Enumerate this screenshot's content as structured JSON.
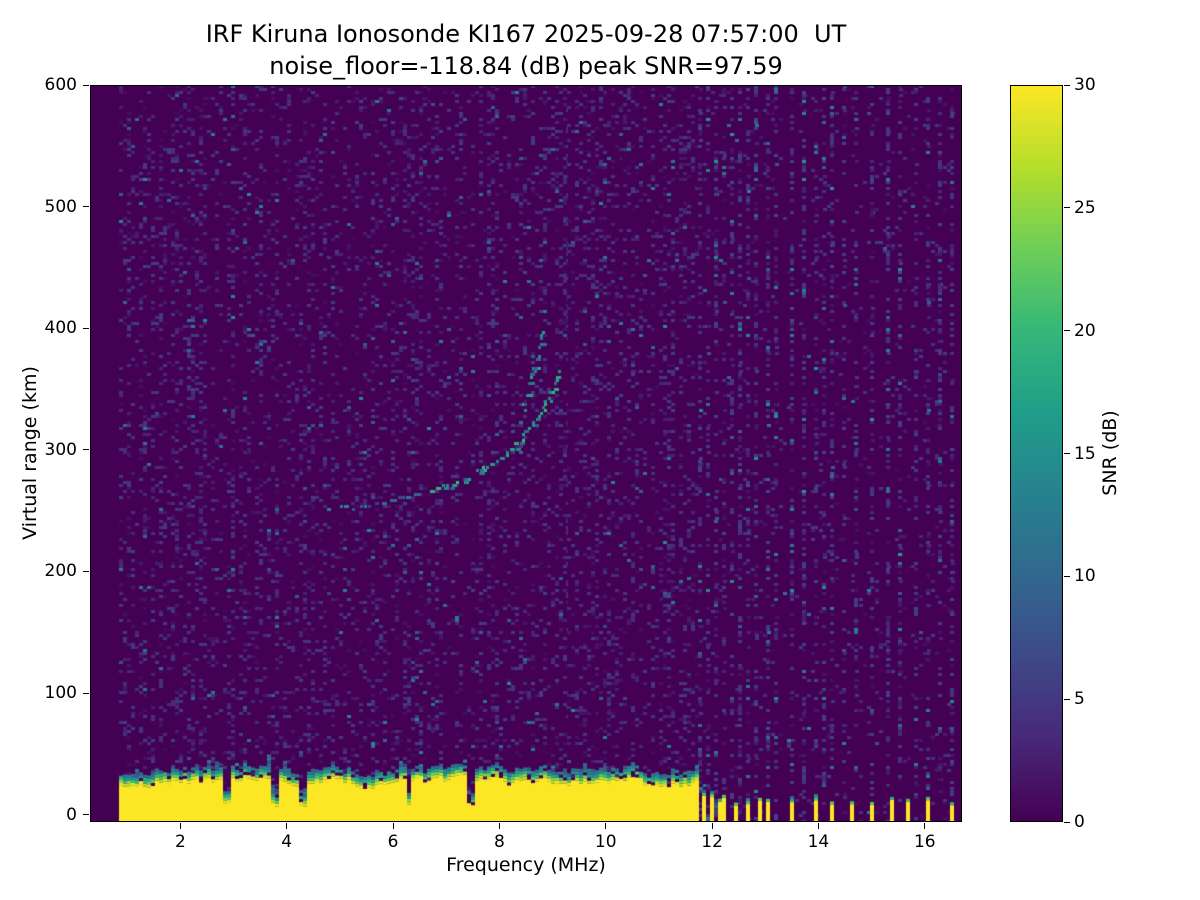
{
  "chart_data": {
    "type": "heatmap",
    "title": "IRF Kiruna Ionosonde KI167 2025-09-28 07:57:00  UT",
    "subtitle": "noise_floor=-118.84 (dB) peak SNR=97.59",
    "station": "IRF Kiruna Ionosonde KI167",
    "timestamp_ut": "2025-09-28 07:57:00",
    "noise_floor_db": -118.84,
    "peak_snr_db": 97.59,
    "xlabel": "Frequency (MHz)",
    "ylabel": "Virtual range (km)",
    "colorbar_label": "SNR (dB)",
    "colormap": "viridis",
    "xlim": [
      0.3,
      16.7
    ],
    "ylim": [
      -6,
      600
    ],
    "x_ticks": [
      2,
      4,
      6,
      8,
      10,
      12,
      14,
      16
    ],
    "y_ticks": [
      0,
      100,
      200,
      300,
      400,
      500,
      600
    ],
    "colorbar_ticks": [
      0,
      5,
      10,
      15,
      20,
      25,
      30
    ],
    "colorbar_range": [
      0,
      30
    ],
    "viridis_stops": [
      "#440154",
      "#482878",
      "#3e4989",
      "#31688e",
      "#26828e",
      "#1f9e89",
      "#35b779",
      "#6ece58",
      "#b5de2b",
      "#fde725"
    ],
    "render_seed": 1234567,
    "features": {
      "data_freq_range_mhz": [
        0.85,
        16.55
      ],
      "background_snr_db": 0,
      "noise_speckle": {
        "density_low_band": 0.15,
        "density_high_band": 0.045,
        "snr_db_range": [
          0.7,
          5.5
        ]
      },
      "ground_clutter": {
        "freq_range_mhz": [
          0.85,
          11.7
        ],
        "snr_db": 30,
        "top_km_mean": 27,
        "top_km_jitter": 8,
        "notch_freqs_mhz": [
          2.85,
          3.75,
          4.3,
          6.3,
          7.45
        ]
      },
      "clutter_bars_mhz": [
        11.82,
        11.95,
        12.08,
        12.22,
        12.41,
        12.64,
        12.84,
        13.01,
        13.47,
        13.88,
        14.18,
        14.56,
        14.97,
        15.35,
        15.63,
        16.0,
        16.45
      ],
      "interference_columns_mhz": [
        11.7,
        11.85,
        12.0,
        12.15,
        12.3,
        12.45,
        12.62,
        12.8,
        13.0,
        13.2,
        13.47,
        13.7,
        13.88,
        14.05,
        14.18,
        14.45,
        14.69,
        14.97,
        15.25,
        15.53,
        15.76,
        16.0,
        16.28,
        16.45
      ],
      "faint_vertical_line_mhz": 9.25,
      "echo_trace_main_mhz_km": [
        [
          4.95,
          252
        ],
        [
          5.5,
          255
        ],
        [
          6.0,
          259
        ],
        [
          6.5,
          264
        ],
        [
          6.95,
          270
        ],
        [
          7.35,
          277
        ],
        [
          7.7,
          285
        ],
        [
          8.05,
          295
        ],
        [
          8.35,
          307
        ],
        [
          8.6,
          320
        ],
        [
          8.8,
          334
        ],
        [
          8.95,
          347
        ],
        [
          9.05,
          358
        ],
        [
          9.1,
          365
        ]
      ],
      "echo_trace_branch_mhz_km": [
        [
          8.45,
          335
        ],
        [
          8.55,
          352
        ],
        [
          8.65,
          370
        ],
        [
          8.72,
          385
        ],
        [
          8.78,
          398
        ]
      ],
      "echo_snr_db_range": [
        8,
        20
      ]
    }
  }
}
